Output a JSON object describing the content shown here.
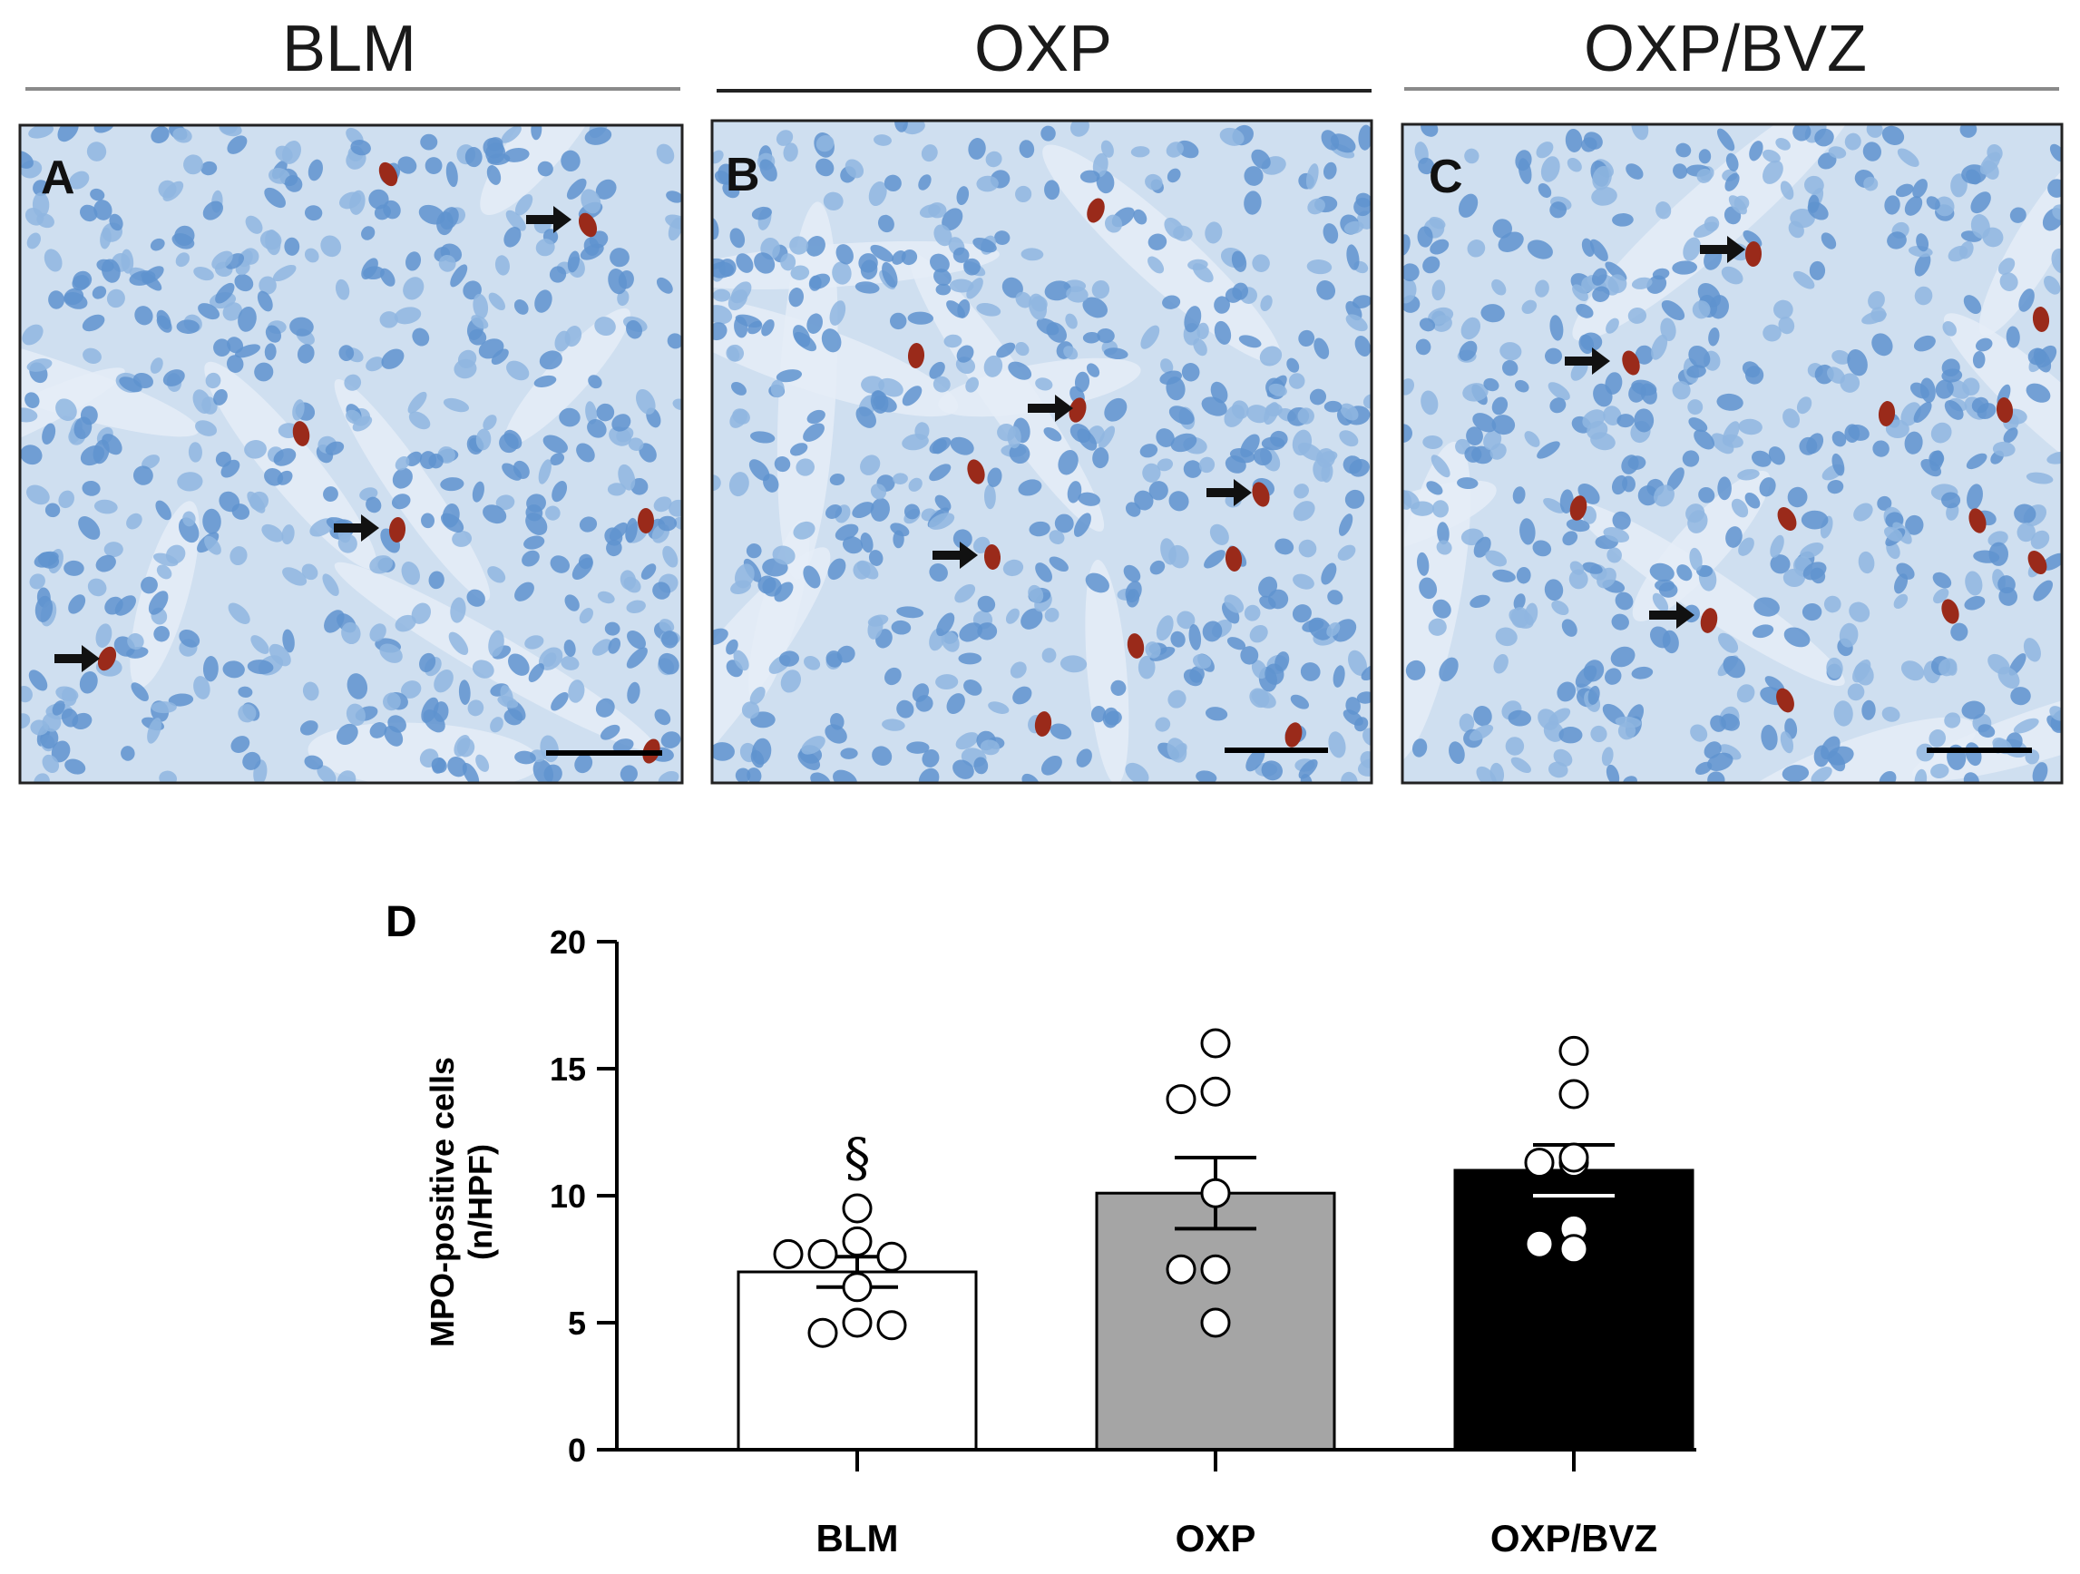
{
  "micrographs": {
    "panels": [
      {
        "letter": "A",
        "group": "BLM"
      },
      {
        "letter": "B",
        "group": "OXP"
      },
      {
        "letter": "C",
        "group": "OXP/BVZ"
      }
    ],
    "colors": {
      "tissue": "#cfdff0",
      "nuclei": "#5f93cf",
      "stain": "#9a2a1a",
      "arrow": "#111111"
    }
  },
  "chart_data": {
    "type": "bar",
    "panel_letter": "D",
    "categories": [
      "BLM",
      "OXP",
      "OXP/BVZ"
    ],
    "values": [
      7.0,
      10.1,
      11.0
    ],
    "sem": [
      0.6,
      1.4,
      1.0
    ],
    "points": [
      [
        9.5,
        8.2,
        7.7,
        7.6,
        7.7,
        6.4,
        5.0,
        4.6,
        4.9
      ],
      [
        16.0,
        14.1,
        13.8,
        10.1,
        7.1,
        7.1,
        5.0
      ],
      [
        15.7,
        14.0,
        11.3,
        11.3,
        11.5,
        8.7,
        7.9,
        8.1
      ]
    ],
    "bar_colors": [
      "#ffffff",
      "#a5a5a5",
      "#000000"
    ],
    "ylabel_line1": "MPO-positive cells",
    "ylabel_line2": "(n/HPF)",
    "yticks": [
      "0",
      "5",
      "10",
      "15",
      "20"
    ],
    "ylim": [
      0,
      20
    ],
    "annotation": {
      "text": "§",
      "category": "BLM"
    },
    "grid": false
  }
}
